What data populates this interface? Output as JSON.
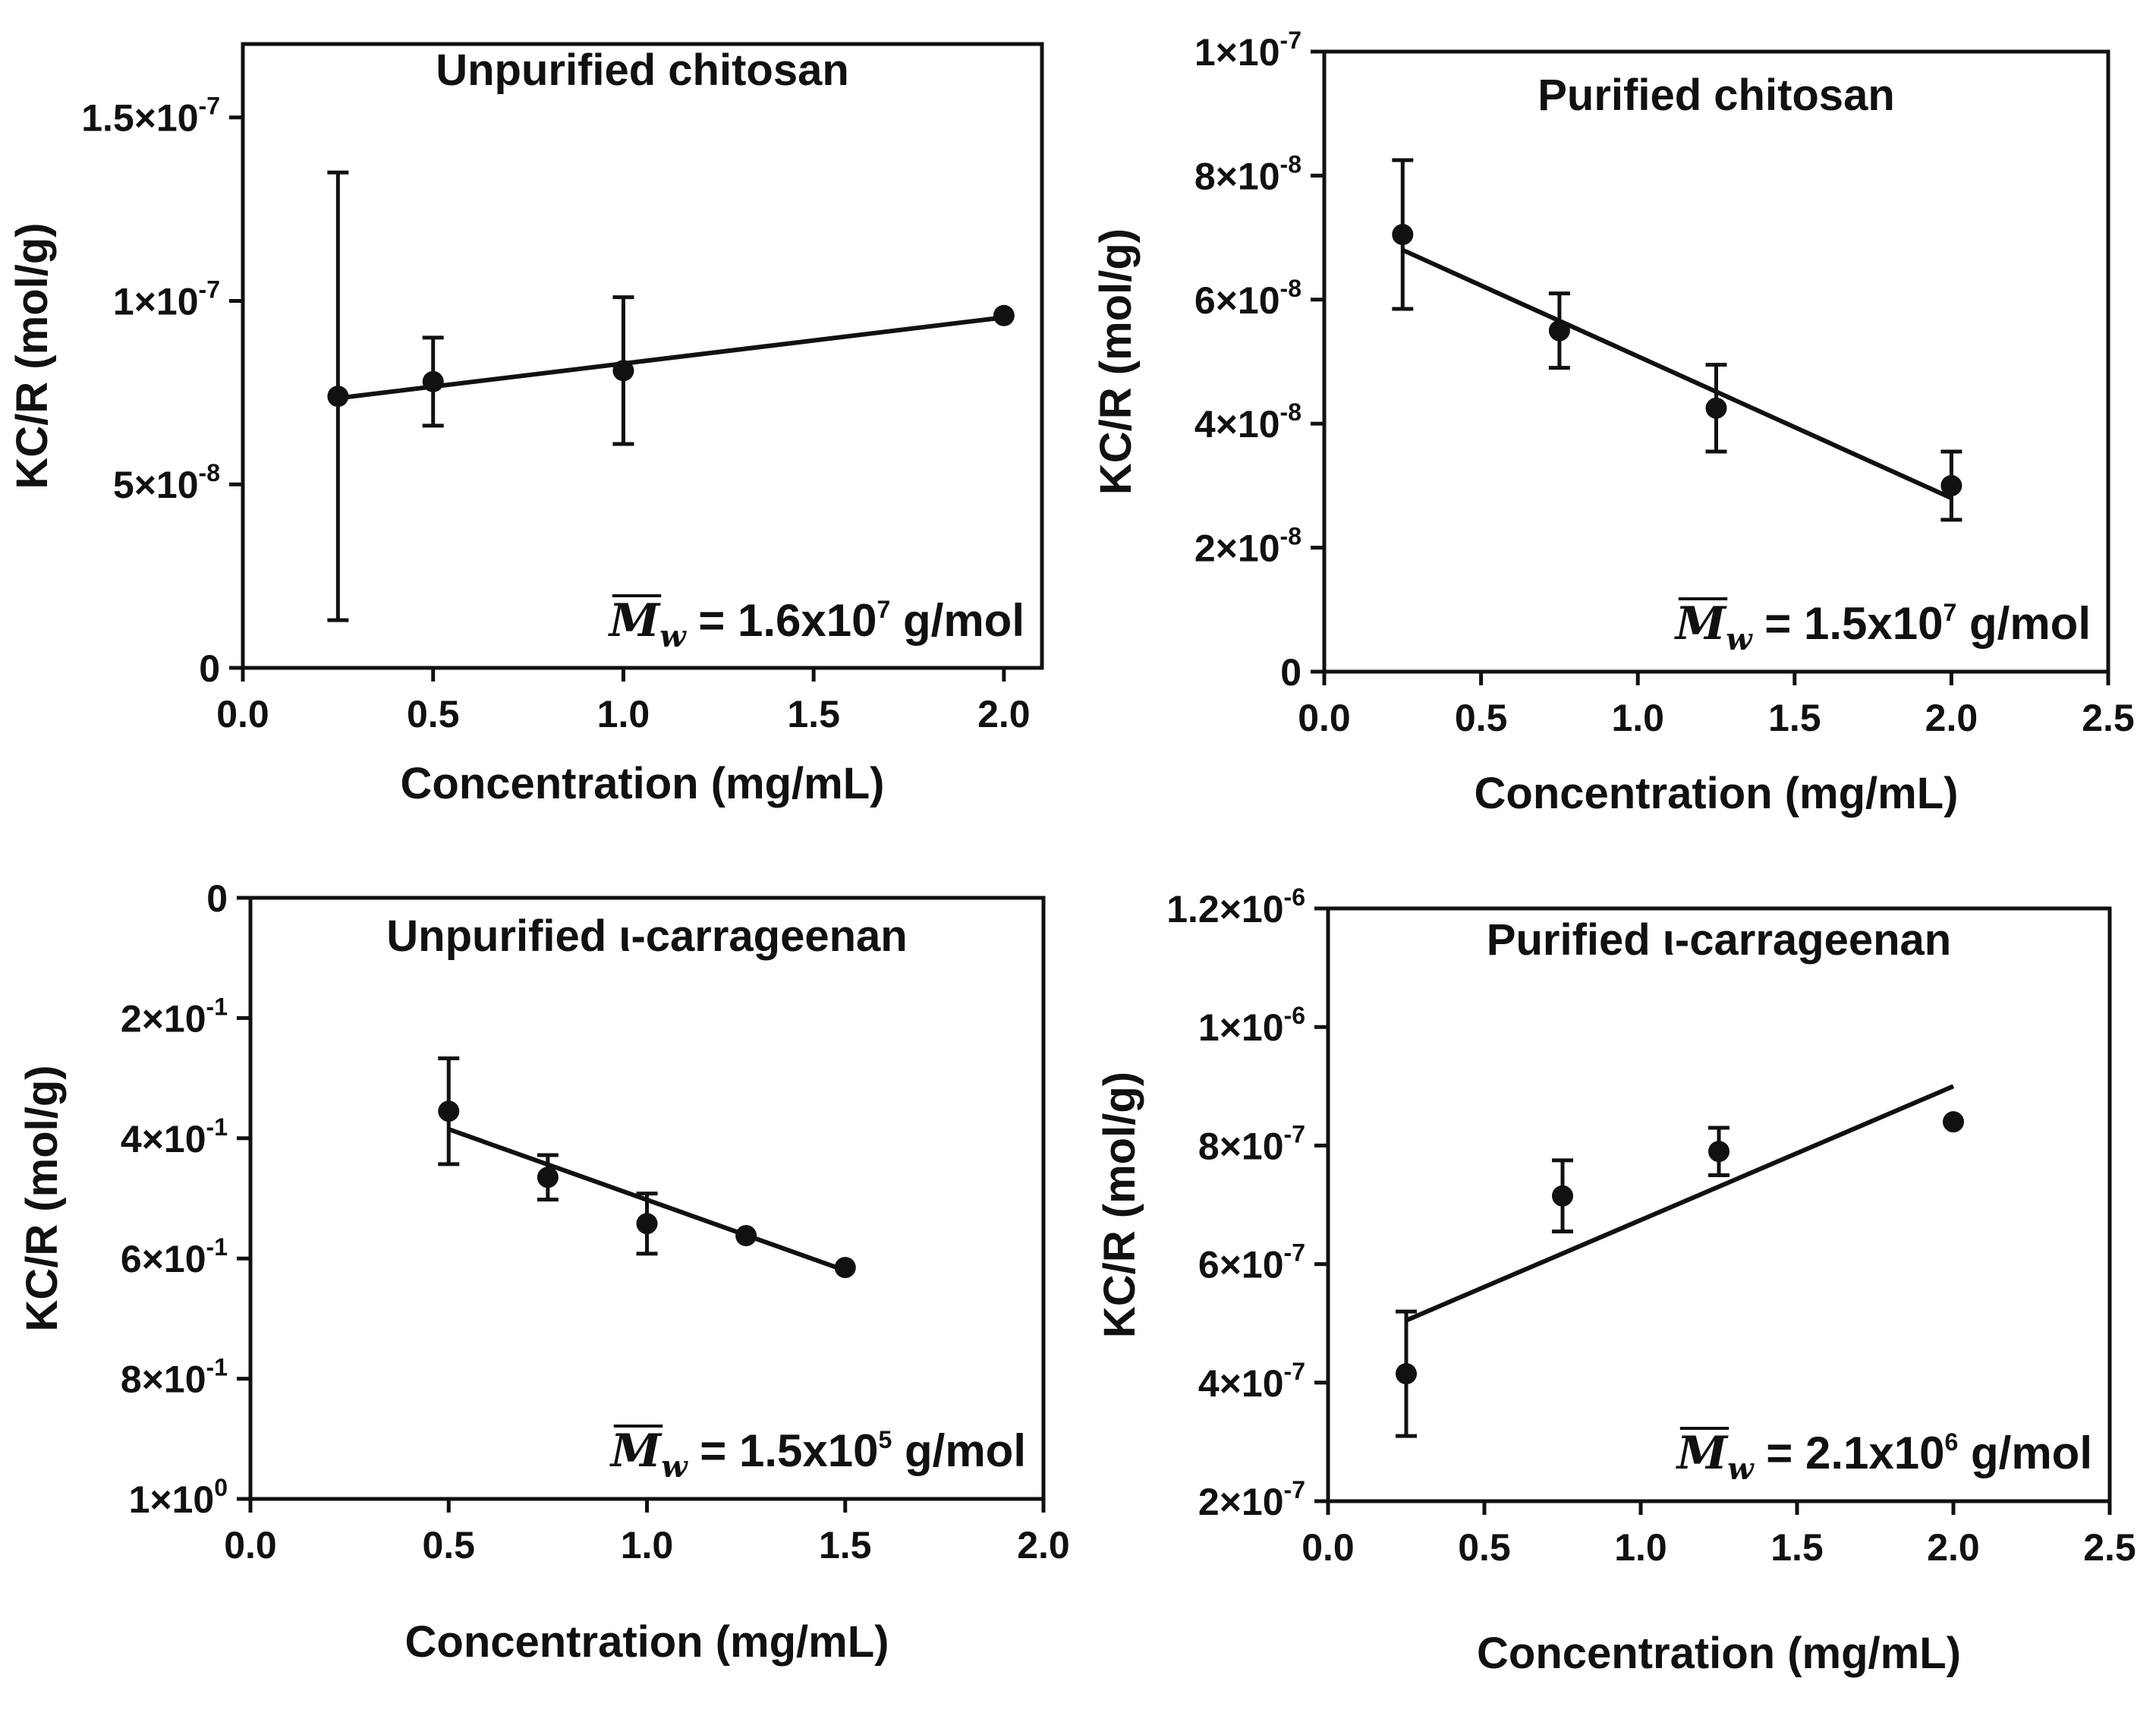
{
  "chart_data": [
    {
      "type": "scatter",
      "title": "Unpurified chitosan",
      "xlabel": "Concentration (mg/mL)",
      "ylabel": "KC/R (mol/g)",
      "xlim": [
        0,
        2.1
      ],
      "ylim": [
        0,
        1.7e-07
      ],
      "xticks": [
        0,
        0.5,
        1.0,
        1.5,
        2.0
      ],
      "xtick_labels": [
        "0.0",
        "0.5",
        "1.0",
        "1.5",
        "2.0"
      ],
      "yticks": [
        0,
        5e-08,
        1e-07,
        1.5e-07
      ],
      "ytick_labels": [
        {
          "base": "0",
          "exp": ""
        },
        {
          "base": "5×10",
          "exp": "-8"
        },
        {
          "base": "1×10",
          "exp": "-7"
        },
        {
          "base": "1.5×10",
          "exp": "-7"
        }
      ],
      "points": [
        {
          "x": 0.25,
          "y": 7.4e-08,
          "err": 6.1e-08
        },
        {
          "x": 0.5,
          "y": 7.8e-08,
          "err": 1.2e-08
        },
        {
          "x": 1.0,
          "y": 8.1e-08,
          "err": 2e-08
        },
        {
          "x": 2.0,
          "y": 9.6e-08,
          "err": 0
        }
      ],
      "fit": {
        "x": [
          0.25,
          2.0
        ],
        "y": [
          7.35e-08,
          9.55e-08
        ]
      },
      "annotation": {
        "symbol": "M",
        "subscript": "w",
        "equals": "=",
        "mantissa": "1.6x10",
        "exponent": "7",
        "unit": "g/mol"
      }
    },
    {
      "type": "scatter",
      "title": "Purified chitosan",
      "xlabel": "Concentration (mg/mL)",
      "ylabel": "KC/R (mol/g)",
      "xlim": [
        0,
        2.5
      ],
      "ylim": [
        0,
        1e-07
      ],
      "xticks": [
        0,
        0.5,
        1.0,
        1.5,
        2.0,
        2.5
      ],
      "xtick_labels": [
        "0.0",
        "0.5",
        "1.0",
        "1.5",
        "2.0",
        "2.5"
      ],
      "yticks": [
        0,
        2e-08,
        4e-08,
        6e-08,
        8e-08,
        1e-07
      ],
      "ytick_labels": [
        {
          "base": "0",
          "exp": ""
        },
        {
          "base": "2×10",
          "exp": "-8"
        },
        {
          "base": "4×10",
          "exp": "-8"
        },
        {
          "base": "6×10",
          "exp": "-8"
        },
        {
          "base": "8×10",
          "exp": "-8"
        },
        {
          "base": "1×10",
          "exp": "-7"
        }
      ],
      "points": [
        {
          "x": 0.25,
          "y": 7.05e-08,
          "err": 1.2e-08
        },
        {
          "x": 0.75,
          "y": 5.5e-08,
          "err": 6e-09
        },
        {
          "x": 1.25,
          "y": 4.25e-08,
          "err": 7e-09
        },
        {
          "x": 2.0,
          "y": 3e-08,
          "err": 5.5e-09
        }
      ],
      "fit": {
        "x": [
          0.25,
          2.0
        ],
        "y": [
          6.8e-08,
          2.8e-08
        ]
      },
      "annotation": {
        "symbol": "M",
        "subscript": "w",
        "equals": "=",
        "mantissa": "1.5x10",
        "exponent": "7",
        "unit": "g/mol"
      }
    },
    {
      "type": "scatter",
      "title": "Unpurified ι-carrageenan",
      "xlabel": "Concentration (mg/mL)",
      "ylabel": "KC/R (mol/g)",
      "xlim": [
        0,
        2.0
      ],
      "ylim": [
        1.0,
        0
      ],
      "y_inverted": true,
      "xticks": [
        0,
        0.5,
        1.0,
        1.5,
        2.0
      ],
      "xtick_labels": [
        "0.0",
        "0.5",
        "1.0",
        "1.5",
        "2.0"
      ],
      "yticks": [
        0,
        0.2,
        0.4,
        0.6,
        0.8,
        1.0
      ],
      "ytick_labels": [
        {
          "base": "0",
          "exp": ""
        },
        {
          "base": "2×10",
          "exp": "-1"
        },
        {
          "base": "4×10",
          "exp": "-1"
        },
        {
          "base": "6×10",
          "exp": "-1"
        },
        {
          "base": "8×10",
          "exp": "-1"
        },
        {
          "base": "1×10",
          "exp": "0"
        }
      ],
      "points": [
        {
          "x": 0.5,
          "y": 0.355,
          "err": 0.088
        },
        {
          "x": 0.75,
          "y": 0.465,
          "err": 0.037
        },
        {
          "x": 1.0,
          "y": 0.542,
          "err": 0.05
        },
        {
          "x": 1.25,
          "y": 0.562,
          "err": 0
        },
        {
          "x": 1.5,
          "y": 0.615,
          "err": 0
        }
      ],
      "fit": {
        "x": [
          0.5,
          1.5
        ],
        "y": [
          0.385,
          0.62
        ]
      },
      "annotation": {
        "symbol": "M",
        "subscript": "w",
        "equals": "=",
        "mantissa": "1.5x10",
        "exponent": "5",
        "unit": "g/mol"
      }
    },
    {
      "type": "scatter",
      "title": "Purified ι-carrageenan",
      "xlabel": "Concentration (mg/mL)",
      "ylabel": "KC/R (mol/g)",
      "xlim": [
        0,
        2.5
      ],
      "ylim": [
        2e-07,
        1.2e-06
      ],
      "xticks": [
        0,
        0.5,
        1.0,
        1.5,
        2.0,
        2.5
      ],
      "xtick_labels": [
        "0.0",
        "0.5",
        "1.0",
        "1.5",
        "2.0",
        "2.5"
      ],
      "yticks": [
        2e-07,
        4e-07,
        6e-07,
        8e-07,
        1e-06,
        1.2e-06
      ],
      "ytick_labels": [
        {
          "base": "2×10",
          "exp": "-7"
        },
        {
          "base": "4×10",
          "exp": "-7"
        },
        {
          "base": "6×10",
          "exp": "-7"
        },
        {
          "base": "8×10",
          "exp": "-7"
        },
        {
          "base": "1×10",
          "exp": "-6"
        },
        {
          "base": "1.2×10",
          "exp": "-6"
        }
      ],
      "points": [
        {
          "x": 0.25,
          "y": 4.15e-07,
          "err": 1.05e-07
        },
        {
          "x": 0.75,
          "y": 7.15e-07,
          "err": 6e-08
        },
        {
          "x": 1.25,
          "y": 7.9e-07,
          "err": 4e-08
        },
        {
          "x": 2.0,
          "y": 8.4e-07,
          "err": 0
        }
      ],
      "fit": {
        "x": [
          0.25,
          2.0
        ],
        "y": [
          5.05e-07,
          9e-07
        ]
      },
      "annotation": {
        "symbol": "M",
        "subscript": "w",
        "equals": "=",
        "mantissa": "2.1x10",
        "exponent": "6",
        "unit": "g/mol"
      }
    }
  ]
}
